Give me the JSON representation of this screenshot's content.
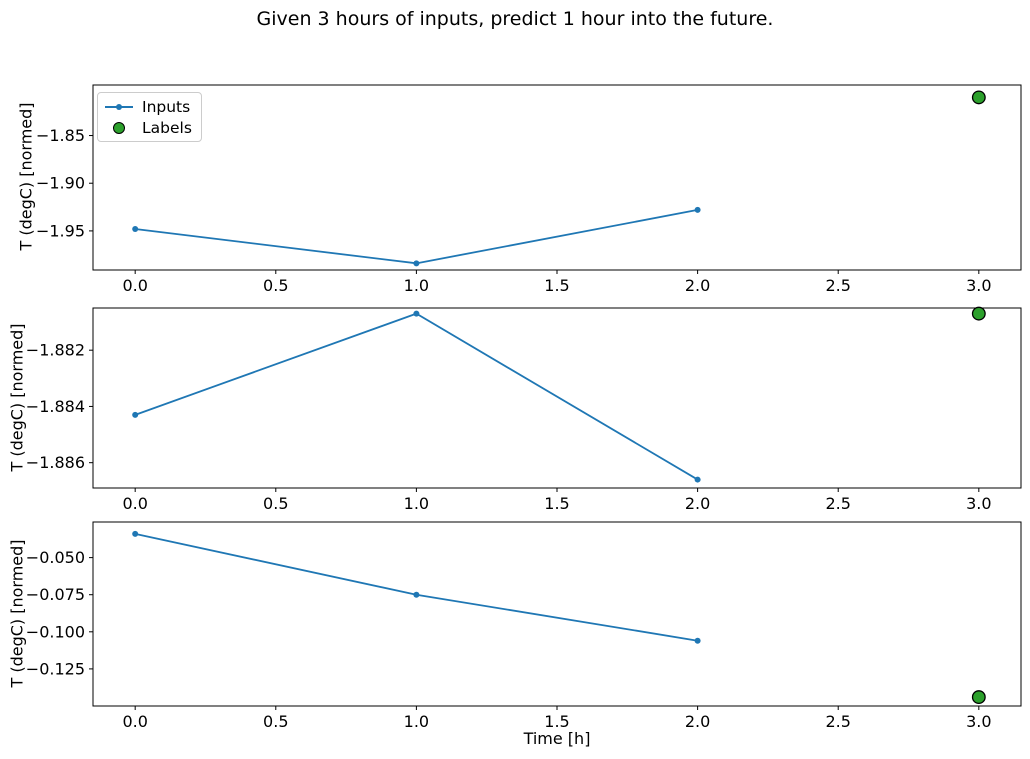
{
  "figure": {
    "title": "Given 3 hours of inputs, predict 1 hour into the future.",
    "xlabel": "Time [h]",
    "legend": {
      "position": "upper left of subplot 1",
      "entries": [
        {
          "label": "Inputs"
        },
        {
          "label": "Labels"
        }
      ]
    },
    "colors": {
      "inputs_line": "#1f77b4",
      "labels_fill": "#2ca02c",
      "labels_edge": "#000000",
      "axes_spine": "#000000",
      "text": "#000000",
      "legend_border": "#cccccc",
      "background": "#ffffff"
    }
  },
  "chart_data": [
    {
      "type": "line",
      "subplot": 1,
      "ylabel": "T (degC) [normed]",
      "x": [
        0.0,
        1.0,
        2.0
      ],
      "series": [
        {
          "name": "Inputs",
          "values": [
            -1.948,
            -1.984,
            -1.928
          ],
          "marker": "dot"
        }
      ],
      "label_point": {
        "name": "Labels",
        "x": 3.0,
        "y": -1.81
      },
      "xlim": [
        -0.15,
        3.15
      ],
      "ylim": [
        -1.991,
        -1.797
      ],
      "xticks": {
        "values": [
          0.0,
          0.5,
          1.0,
          1.5,
          2.0,
          2.5,
          3.0
        ],
        "labels": [
          "0.0",
          "0.5",
          "1.0",
          "1.5",
          "2.0",
          "2.5",
          "3.0"
        ]
      },
      "yticks": {
        "values": [
          -1.85,
          -1.9,
          -1.95
        ],
        "labels": [
          "−1.85",
          "−1.90",
          "−1.95"
        ]
      },
      "grid": false,
      "has_legend": true
    },
    {
      "type": "line",
      "subplot": 2,
      "ylabel": "T (degC) [normed]",
      "x": [
        0.0,
        1.0,
        2.0
      ],
      "series": [
        {
          "name": "Inputs",
          "values": [
            -1.8843,
            -1.8807,
            -1.8866
          ],
          "marker": "dot"
        }
      ],
      "label_point": {
        "name": "Labels",
        "x": 3.0,
        "y": -1.8807
      },
      "xlim": [
        -0.15,
        3.15
      ],
      "ylim": [
        -1.8869,
        -1.8805
      ],
      "xticks": {
        "values": [
          0.0,
          0.5,
          1.0,
          1.5,
          2.0,
          2.5,
          3.0
        ],
        "labels": [
          "0.0",
          "0.5",
          "1.0",
          "1.5",
          "2.0",
          "2.5",
          "3.0"
        ]
      },
      "yticks": {
        "values": [
          -1.882,
          -1.884,
          -1.886
        ],
        "labels": [
          "−1.882",
          "−1.884",
          "−1.886"
        ]
      },
      "grid": false,
      "has_legend": false
    },
    {
      "type": "line",
      "subplot": 3,
      "ylabel": "T (degC) [normed]",
      "xlabel": "Time [h]",
      "x": [
        0.0,
        1.0,
        2.0
      ],
      "series": [
        {
          "name": "Inputs",
          "values": [
            -0.034,
            -0.075,
            -0.106
          ],
          "marker": "dot"
        }
      ],
      "label_point": {
        "name": "Labels",
        "x": 3.0,
        "y": -0.144
      },
      "xlim": [
        -0.15,
        3.15
      ],
      "ylim": [
        -0.15,
        -0.026
      ],
      "xticks": {
        "values": [
          0.0,
          0.5,
          1.0,
          1.5,
          2.0,
          2.5,
          3.0
        ],
        "labels": [
          "0.0",
          "0.5",
          "1.0",
          "1.5",
          "2.0",
          "2.5",
          "3.0"
        ]
      },
      "yticks": {
        "values": [
          -0.05,
          -0.075,
          -0.1,
          -0.125
        ],
        "labels": [
          "−0.050",
          "−0.075",
          "−0.100",
          "−0.125"
        ]
      },
      "grid": false,
      "has_legend": false
    }
  ]
}
